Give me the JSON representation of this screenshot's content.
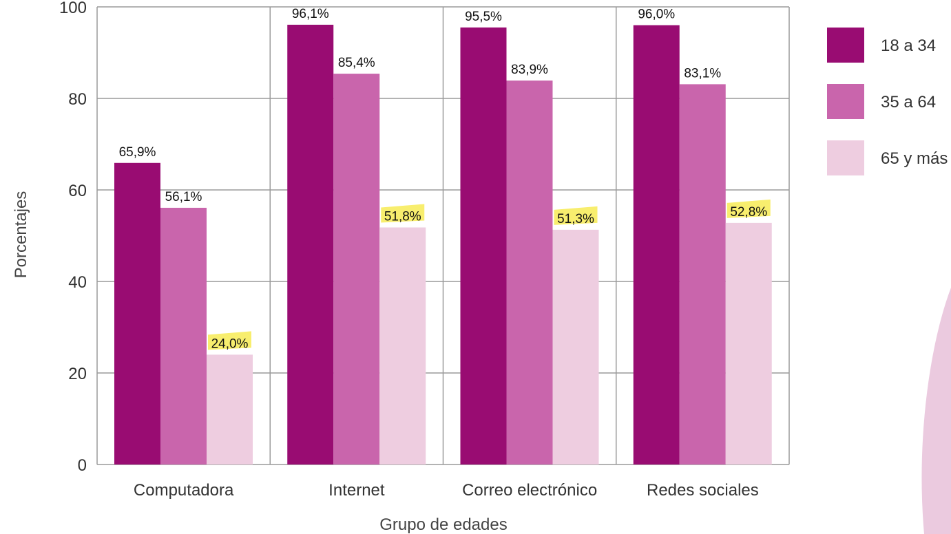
{
  "chart_data": {
    "type": "bar",
    "title": "",
    "xlabel": "Grupo de edades",
    "ylabel": "Porcentajes",
    "ylim": [
      0,
      100
    ],
    "yticks": [
      "0",
      "20",
      "40",
      "60",
      "80",
      "100"
    ],
    "categories": [
      "Computadora",
      "Internet",
      "Correo electrónico",
      "Redes sociales"
    ],
    "series": [
      {
        "name": "18 a 34",
        "color": "#990C72",
        "values": [
          65.9,
          96.1,
          95.5,
          96.0
        ],
        "labels": [
          "65,9%",
          "96,1%",
          "95,5%",
          "96,0%"
        ]
      },
      {
        "name": "35 a 64",
        "color": "#C965AC",
        "values": [
          56.1,
          85.4,
          83.9,
          83.1
        ],
        "labels": [
          "56,1%",
          "85,4%",
          "83,9%",
          "83,1%"
        ]
      },
      {
        "name": "65 y más",
        "color": "#EECDE0",
        "values": [
          24.0,
          51.8,
          51.3,
          52.8
        ],
        "labels": [
          "24,0%",
          "51,8%",
          "51,3%",
          "52,8%"
        ],
        "highlight": "#F8EE6E"
      }
    ],
    "grid": true,
    "legend_position": "right"
  }
}
